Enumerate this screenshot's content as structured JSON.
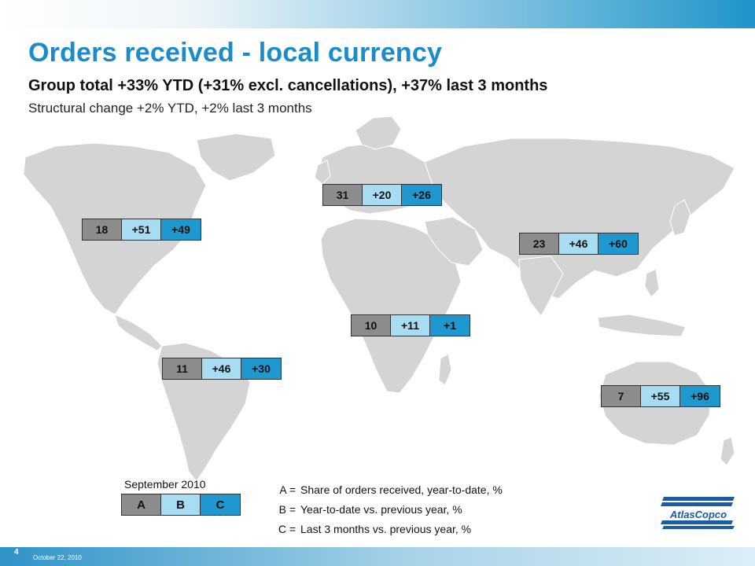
{
  "slide": {
    "title": "Orders received - local currency",
    "subtitle": "Group total +33% YTD (+31% excl. cancellations), +37% last 3 months",
    "subtitle2": "Structural change +2% YTD, +2% last 3 months"
  },
  "regions": [
    {
      "name": "North America",
      "a": "18",
      "b": "+51",
      "c": "+49"
    },
    {
      "name": "Europe",
      "a": "31",
      "b": "+20",
      "c": "+26"
    },
    {
      "name": "Asia",
      "a": "23",
      "b": "+46",
      "c": "+60"
    },
    {
      "name": "Africa/Middle East",
      "a": "10",
      "b": "+11",
      "c": "+1"
    },
    {
      "name": "South America",
      "a": "11",
      "b": "+46",
      "c": "+30"
    },
    {
      "name": "Australia",
      "a": "7",
      "b": "+55",
      "c": "+96"
    }
  ],
  "legend": {
    "date": "September 2010",
    "a": "A",
    "b": "B",
    "c": "C",
    "defs": [
      {
        "key": "A =",
        "text": "Share of orders received, year-to-date, %"
      },
      {
        "key": "B =",
        "text": "Year-to-date vs. previous year, %"
      },
      {
        "key": "C =",
        "text": "Last 3 months vs. previous year, %"
      }
    ]
  },
  "footer": {
    "page": "4",
    "date": "October 22, 2010"
  },
  "logo": {
    "text": "AtlasCopco",
    "color": "#1a5aa8"
  },
  "colors": {
    "title": "#1a8ccd",
    "map": "#d4d4d4",
    "cell_a": "#8c8c8c",
    "cell_b": "#a8dcf2",
    "cell_c": "#1f97cf"
  }
}
